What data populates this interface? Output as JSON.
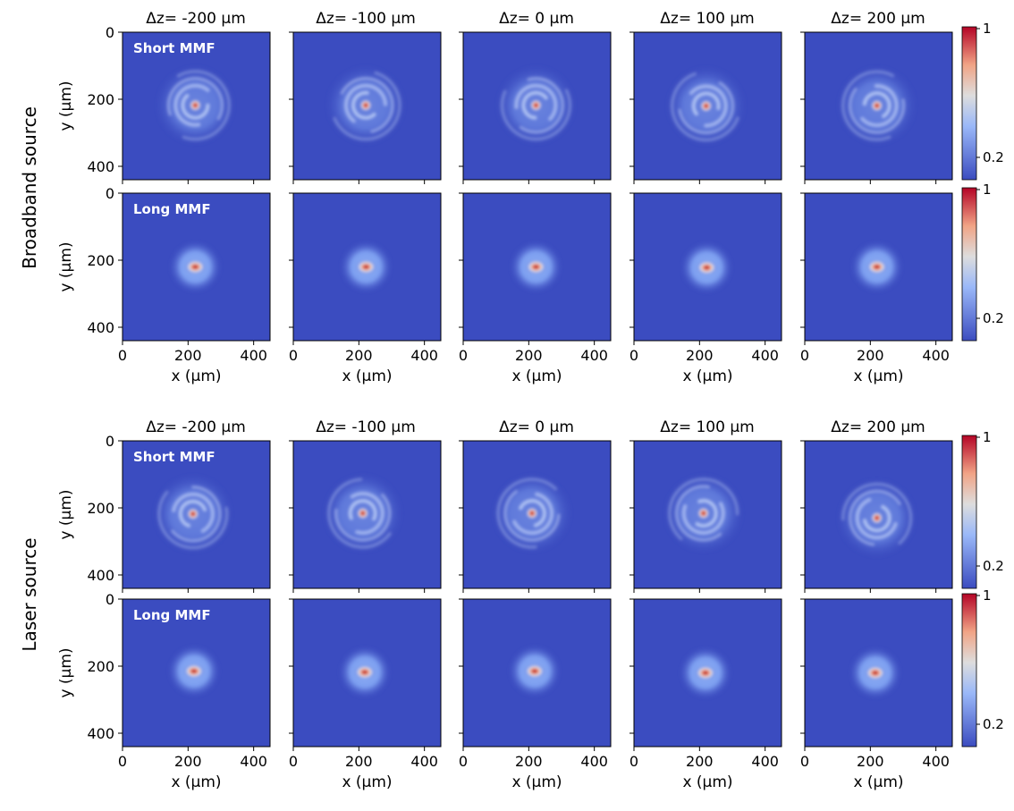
{
  "figure": {
    "sections": [
      {
        "label": "Broadband source"
      },
      {
        "label": "Laser source"
      }
    ],
    "columns": [
      "Δz= -200 μm",
      "Δz= -100 μm",
      "Δz= 0 μm",
      "Δz= 100 μm",
      "Δz= 200 μm"
    ],
    "row_labels": [
      "Short MMF",
      "Long MMF"
    ],
    "colormap": {
      "name": "coolwarm",
      "low": "#3b4cc0",
      "mid": "#dddddd",
      "high": "#b40426",
      "tick_labels": [
        "1",
        "0.2"
      ],
      "ticks": [
        1,
        0.2
      ]
    }
  },
  "chart_data": {
    "type": "heatmap",
    "xlabel": "x (μm)",
    "ylabel": "y (μm)",
    "x_ticks": [
      "0",
      "200",
      "400"
    ],
    "y_ticks": [
      "0",
      "200",
      "400"
    ],
    "xlim": [
      0,
      450
    ],
    "ylim": [
      440,
      0
    ],
    "panels": [
      {
        "source": "Broadband source",
        "fiber": "Short MMF",
        "dz": -200,
        "pattern": "speckle-rings",
        "peak": [
          222,
          218
        ]
      },
      {
        "source": "Broadband source",
        "fiber": "Short MMF",
        "dz": -100,
        "pattern": "speckle-rings",
        "peak": [
          221,
          218
        ]
      },
      {
        "source": "Broadband source",
        "fiber": "Short MMF",
        "dz": 0,
        "pattern": "speckle-rings",
        "peak": [
          222,
          218
        ]
      },
      {
        "source": "Broadband source",
        "fiber": "Short MMF",
        "dz": 100,
        "pattern": "speckle-rings",
        "peak": [
          220,
          220
        ]
      },
      {
        "source": "Broadband source",
        "fiber": "Short MMF",
        "dz": 200,
        "pattern": "speckle-rings",
        "peak": [
          220,
          219
        ]
      },
      {
        "source": "Broadband source",
        "fiber": "Long MMF",
        "dz": -200,
        "pattern": "gaussian-spot",
        "peak": [
          222,
          220
        ]
      },
      {
        "source": "Broadband source",
        "fiber": "Long MMF",
        "dz": -100,
        "pattern": "gaussian-spot",
        "peak": [
          222,
          220
        ]
      },
      {
        "source": "Broadband source",
        "fiber": "Long MMF",
        "dz": 0,
        "pattern": "gaussian-spot",
        "peak": [
          222,
          220
        ]
      },
      {
        "source": "Broadband source",
        "fiber": "Long MMF",
        "dz": 100,
        "pattern": "gaussian-spot",
        "peak": [
          222,
          222
        ]
      },
      {
        "source": "Broadband source",
        "fiber": "Long MMF",
        "dz": 200,
        "pattern": "gaussian-spot",
        "peak": [
          220,
          220
        ]
      },
      {
        "source": "Laser source",
        "fiber": "Short MMF",
        "dz": -200,
        "pattern": "speckle-rings",
        "peak": [
          215,
          218
        ]
      },
      {
        "source": "Laser source",
        "fiber": "Short MMF",
        "dz": -100,
        "pattern": "speckle-rings",
        "peak": [
          212,
          216
        ]
      },
      {
        "source": "Laser source",
        "fiber": "Short MMF",
        "dz": 0,
        "pattern": "speckle-rings",
        "peak": [
          210,
          216
        ]
      },
      {
        "source": "Laser source",
        "fiber": "Short MMF",
        "dz": 100,
        "pattern": "speckle-rings",
        "peak": [
          212,
          216
        ]
      },
      {
        "source": "Laser source",
        "fiber": "Short MMF",
        "dz": 200,
        "pattern": "speckle-rings",
        "peak": [
          220,
          230
        ]
      },
      {
        "source": "Laser source",
        "fiber": "Long MMF",
        "dz": -200,
        "pattern": "gaussian-spot",
        "peak": [
          218,
          215
        ]
      },
      {
        "source": "Laser source",
        "fiber": "Long MMF",
        "dz": -100,
        "pattern": "gaussian-spot",
        "peak": [
          218,
          218
        ]
      },
      {
        "source": "Laser source",
        "fiber": "Long MMF",
        "dz": 0,
        "pattern": "gaussian-spot",
        "peak": [
          218,
          215
        ]
      },
      {
        "source": "Laser source",
        "fiber": "Long MMF",
        "dz": 100,
        "pattern": "gaussian-spot",
        "peak": [
          218,
          220
        ]
      },
      {
        "source": "Laser source",
        "fiber": "Long MMF",
        "dz": 200,
        "pattern": "gaussian-spot",
        "peak": [
          215,
          220
        ]
      }
    ]
  }
}
